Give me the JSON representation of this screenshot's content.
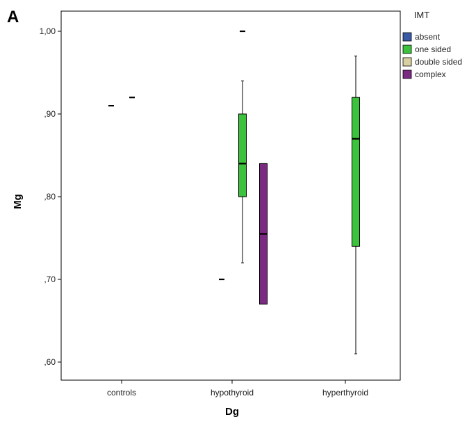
{
  "panel_label": "A",
  "chart_data": {
    "type": "boxplot",
    "title": "",
    "xlabel": "Dg",
    "ylabel": "Mg",
    "ylim": [
      0.58,
      1.05
    ],
    "yticks": [
      0.6,
      0.7,
      0.8,
      0.9,
      1.0
    ],
    "ytick_labels": [
      ",60",
      ",70",
      ",80",
      ",90",
      "1,00"
    ],
    "categories": [
      "controls",
      "hypothyroid",
      "hyperthyroid"
    ],
    "grid": false,
    "legend": {
      "title": "IMT",
      "placement": "right",
      "entries": [
        {
          "name": "absent",
          "color": "#3a5aa8"
        },
        {
          "name": "one sided",
          "color": "#3cc23c"
        },
        {
          "name": "double sided",
          "color": "#d8d0a0"
        },
        {
          "name": "complex",
          "color": "#7a2a80"
        }
      ]
    },
    "series": [
      {
        "name": "absent",
        "color": "#3a5aa8",
        "boxes": [
          {
            "category": "controls",
            "min": 0.91,
            "q1": 0.91,
            "median": 0.91,
            "q3": 0.91,
            "max": 0.91
          },
          {
            "category": "hypothyroid",
            "min": 0.7,
            "q1": 0.7,
            "median": 0.7,
            "q3": 0.7,
            "max": 0.7
          },
          {
            "category": "hyperthyroid",
            "min": null,
            "q1": null,
            "median": null,
            "q3": null,
            "max": null
          }
        ]
      },
      {
        "name": "one sided",
        "color": "#3cc23c",
        "boxes": [
          {
            "category": "controls",
            "min": 0.92,
            "q1": 0.92,
            "median": 0.92,
            "q3": 0.92,
            "max": 0.92
          },
          {
            "category": "hypothyroid",
            "min": 0.72,
            "q1": 0.8,
            "median": 0.84,
            "q3": 0.9,
            "max": 0.94
          },
          {
            "category": "hyperthyroid",
            "min": 0.61,
            "q1": 0.74,
            "median": 0.87,
            "q3": 0.92,
            "max": 0.97
          }
        ]
      },
      {
        "name": "double sided",
        "color": "#d8d0a0",
        "boxes": [
          {
            "category": "controls",
            "min": null,
            "q1": null,
            "median": null,
            "q3": null,
            "max": null
          },
          {
            "category": "hypothyroid",
            "min": 1.0,
            "q1": 1.0,
            "median": 1.0,
            "q3": 1.0,
            "max": 1.0
          },
          {
            "category": "hyperthyroid",
            "min": null,
            "q1": null,
            "median": null,
            "q3": null,
            "max": null
          }
        ]
      },
      {
        "name": "complex",
        "color": "#7a2a80",
        "boxes": [
          {
            "category": "controls",
            "min": null,
            "q1": null,
            "median": null,
            "q3": null,
            "max": null
          },
          {
            "category": "hypothyroid",
            "min": 0.67,
            "q1": 0.67,
            "median": 0.755,
            "q3": 0.84,
            "max": 0.84
          },
          {
            "category": "hyperthyroid",
            "min": null,
            "q1": null,
            "median": null,
            "q3": null,
            "max": null
          }
        ]
      }
    ]
  }
}
